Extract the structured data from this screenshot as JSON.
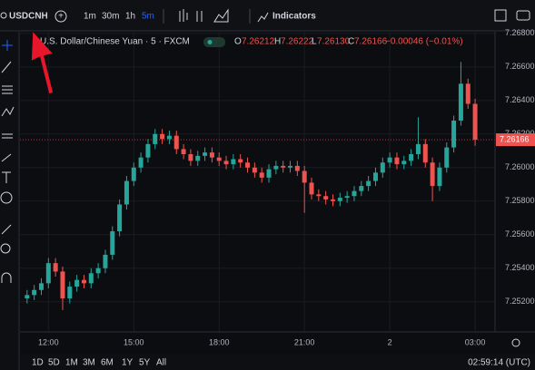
{
  "toolbar": {
    "symbol": "USDCNH",
    "intervals": [
      "1m",
      "30m",
      "1h",
      "5m"
    ],
    "indicators": "Indicators"
  },
  "legend": {
    "title": "U.S. Dollar/Chinese Yuan · 5 · FXCM",
    "open_label": "O",
    "open": "7.26212",
    "high_label": "H",
    "high": "7.26222",
    "low_label": "L",
    "low": "7.26130",
    "close_label": "C",
    "close": "7.26166",
    "change": "−0.00046 (−0.01%)"
  },
  "footer": {
    "ranges": [
      "1D",
      "5D",
      "1M",
      "3M",
      "6M",
      "1Y",
      "5Y",
      "All"
    ],
    "clock": "02:59:14 (UTC)"
  },
  "chart_data": {
    "type": "candlestick",
    "x": [
      11.25,
      11.5,
      11.75,
      12,
      12.25,
      12.5,
      12.75,
      13,
      13.25,
      13.5,
      13.75,
      14,
      14.25,
      14.5,
      14.75,
      15,
      15.25,
      15.5,
      15.75,
      16,
      16.25,
      16.5,
      16.75,
      17,
      17.25,
      17.5,
      17.75,
      18,
      18.25,
      18.5,
      18.75,
      19,
      19.25,
      19.5,
      19.75,
      20,
      20.25,
      20.5,
      20.75,
      21,
      21.25,
      21.5,
      21.75,
      22,
      22.25,
      22.5,
      22.75,
      23,
      23.25,
      23.5,
      23.75,
      24,
      24.25,
      24.5,
      24.75,
      25,
      25.25,
      25.5,
      25.75,
      26,
      26.25,
      26.5,
      26.75,
      27
    ],
    "series": [
      {
        "up_color": "#26a69a",
        "down_color": "#ef5350",
        "open": [
          7.2522,
          7.2524,
          7.2527,
          7.2531,
          7.2543,
          7.2538,
          7.2522,
          7.2529,
          7.2533,
          7.2531,
          7.2537,
          7.254,
          7.2548,
          7.2562,
          7.2578,
          7.2592,
          7.26,
          7.2606,
          7.2614,
          7.262,
          7.2617,
          7.2619,
          7.2611,
          7.2608,
          7.2604,
          7.2607,
          7.2609,
          7.2606,
          7.2604,
          7.2602,
          7.2605,
          7.2603,
          7.26,
          7.2597,
          7.2594,
          7.2599,
          7.2601,
          7.26,
          7.2601,
          7.2598,
          7.2591,
          7.2584,
          7.2583,
          7.2581,
          7.258,
          7.2582,
          7.2583,
          7.2586,
          7.2589,
          7.2592,
          7.2597,
          7.2603,
          7.2606,
          7.2602,
          7.2604,
          7.2608,
          7.2614,
          7.2603,
          7.2589,
          7.26,
          7.2612,
          7.2628,
          7.265,
          7.2638
        ],
        "high": [
          7.2527,
          7.253,
          7.2534,
          7.2546,
          7.2546,
          7.2541,
          7.2532,
          7.2536,
          7.2536,
          7.254,
          7.2543,
          7.2551,
          7.2565,
          7.2581,
          7.2595,
          7.2603,
          7.2609,
          7.2617,
          7.2623,
          7.2623,
          7.2622,
          7.2622,
          7.2614,
          7.2611,
          7.261,
          7.2612,
          7.2612,
          7.2609,
          7.2607,
          7.2608,
          7.2608,
          7.2606,
          7.2603,
          7.26,
          7.2602,
          7.2604,
          7.2604,
          7.2604,
          7.2604,
          7.2601,
          7.2594,
          7.2587,
          7.2586,
          7.2584,
          7.2585,
          7.2586,
          7.2589,
          7.2592,
          7.2595,
          7.26,
          7.2606,
          7.2609,
          7.2609,
          7.2607,
          7.2611,
          7.263,
          7.2617,
          7.2606,
          7.2603,
          7.2615,
          7.2631,
          7.2663,
          7.2653,
          7.2641
        ],
        "low": [
          7.2519,
          7.2521,
          7.2524,
          7.2528,
          7.2535,
          7.2515,
          7.2519,
          7.2526,
          7.2528,
          7.2528,
          7.2534,
          7.2537,
          7.2545,
          7.2559,
          7.2575,
          7.2589,
          7.2597,
          7.2603,
          7.2611,
          7.2614,
          7.2614,
          7.2608,
          7.2605,
          7.2601,
          7.2601,
          7.2604,
          7.2603,
          7.2601,
          7.2599,
          7.2599,
          7.26,
          7.2597,
          7.2594,
          7.2591,
          7.2591,
          7.2596,
          7.2597,
          7.2597,
          7.2595,
          7.2573,
          7.2581,
          7.258,
          7.2578,
          7.2577,
          7.2577,
          7.2579,
          7.258,
          7.2583,
          7.2586,
          7.2589,
          7.2594,
          7.26,
          7.2599,
          7.2599,
          7.2601,
          7.2605,
          7.26,
          7.258,
          7.2586,
          7.2597,
          7.2609,
          7.2625,
          7.2635,
          7.2613
        ],
        "close": [
          7.2524,
          7.2527,
          7.2531,
          7.2543,
          7.2538,
          7.2522,
          7.2529,
          7.2533,
          7.2531,
          7.2537,
          7.254,
          7.2548,
          7.2562,
          7.2578,
          7.2592,
          7.26,
          7.2606,
          7.2614,
          7.262,
          7.2617,
          7.2619,
          7.2611,
          7.2608,
          7.2604,
          7.2607,
          7.2609,
          7.2606,
          7.2604,
          7.2602,
          7.2605,
          7.2603,
          7.26,
          7.2597,
          7.2594,
          7.2599,
          7.2601,
          7.26,
          7.2601,
          7.2598,
          7.2591,
          7.2584,
          7.2583,
          7.2581,
          7.258,
          7.2582,
          7.2583,
          7.2586,
          7.2589,
          7.2592,
          7.2597,
          7.2603,
          7.2606,
          7.2602,
          7.2604,
          7.2608,
          7.2614,
          7.2603,
          7.2589,
          7.26,
          7.2612,
          7.2628,
          7.265,
          7.2638,
          7.26166
        ]
      }
    ],
    "xlim": [
      11.0,
      27.7
    ],
    "xticks": [
      {
        "value": 12,
        "label": "12:00"
      },
      {
        "value": 15,
        "label": "15:00"
      },
      {
        "value": 18,
        "label": "18:00"
      },
      {
        "value": 21,
        "label": "21:00"
      },
      {
        "value": 24,
        "label": "2"
      },
      {
        "value": 27,
        "label": "03:00"
      }
    ],
    "ylim": [
      7.2502,
      7.2681
    ],
    "yticks": [
      {
        "value": 7.252,
        "label": "7.25200"
      },
      {
        "value": 7.254,
        "label": "7.25400"
      },
      {
        "value": 7.256,
        "label": "7.25600"
      },
      {
        "value": 7.258,
        "label": "7.25800"
      },
      {
        "value": 7.26,
        "label": "7.26000"
      },
      {
        "value": 7.262,
        "label": "7.26200"
      },
      {
        "value": 7.264,
        "label": "7.26400"
      },
      {
        "value": 7.266,
        "label": "7.26600"
      },
      {
        "value": 7.268,
        "label": "7.26800"
      }
    ],
    "grid": true,
    "last_price_color": "#ef5350"
  }
}
